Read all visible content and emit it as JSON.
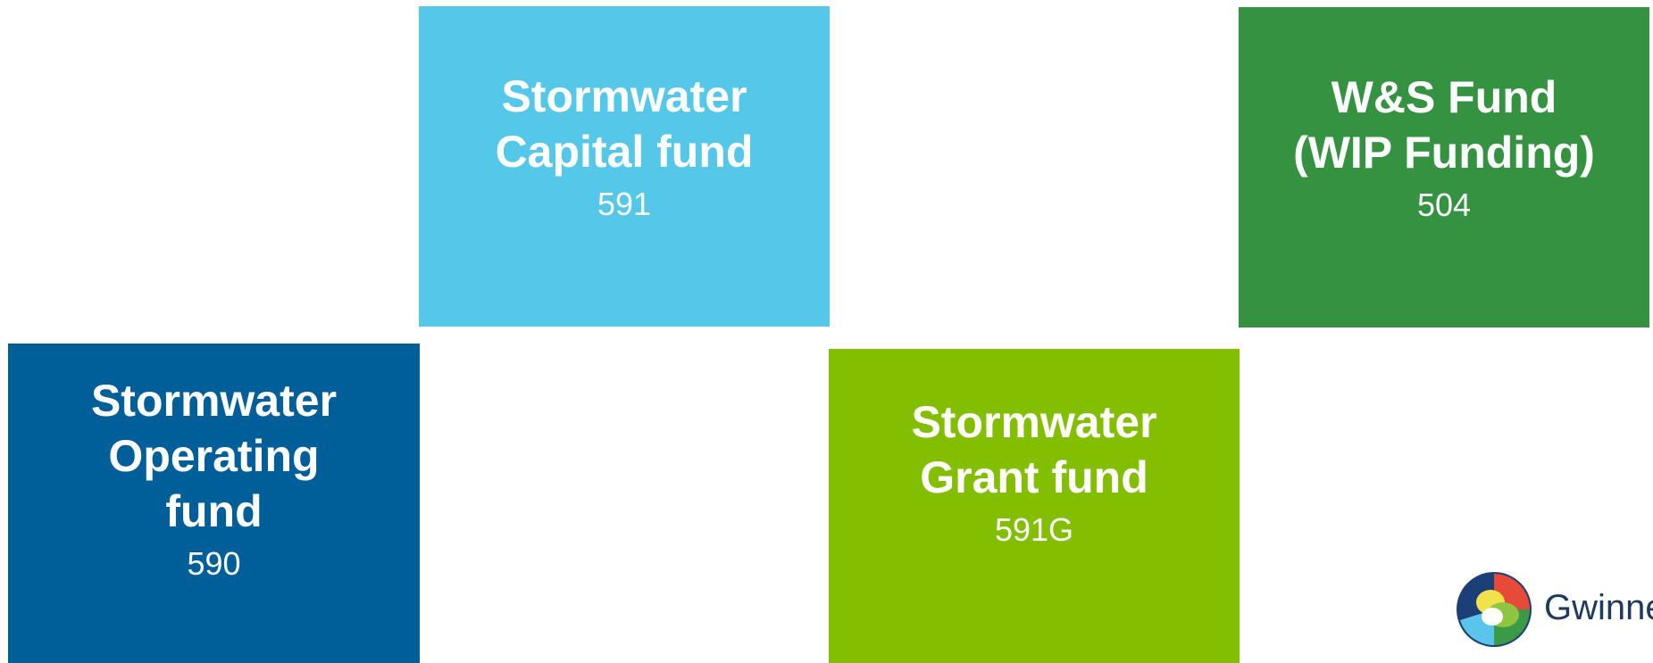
{
  "tiles": [
    {
      "lines": [
        "Stormwater",
        "Capital fund"
      ],
      "code": "591"
    },
    {
      "lines": [
        "W&S Fund",
        "(WIP Funding)"
      ],
      "code": "504"
    },
    {
      "lines": [
        "Stormwater",
        "Operating",
        "fund"
      ],
      "code": "590"
    },
    {
      "lines": [
        "Stormwater",
        "Grant fund"
      ],
      "code": "591G"
    }
  ],
  "logo": {
    "text": "Gwinnett"
  }
}
